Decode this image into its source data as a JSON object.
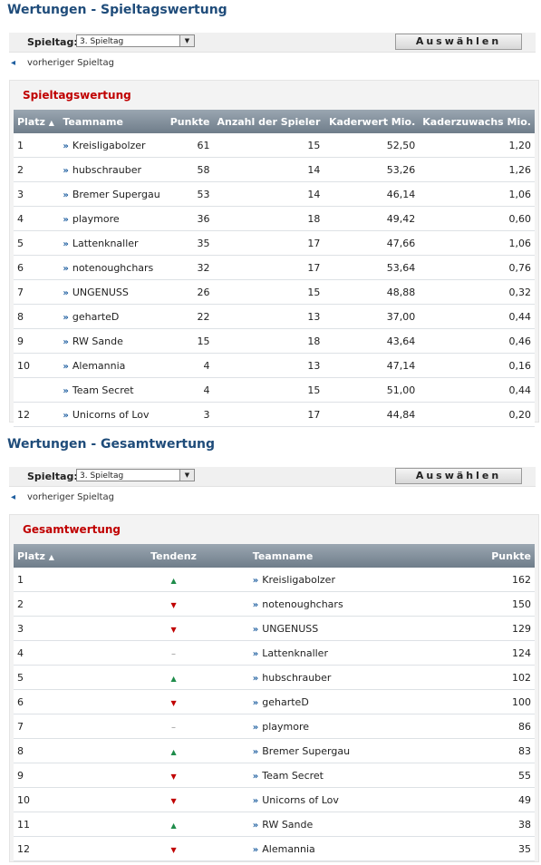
{
  "s1": {
    "title": "Wertungen - Spieltagswertung",
    "select_label": "Spieltag:",
    "select_value": "3. Spieltag",
    "button_label": "Auswählen",
    "prev_label": "vorheriger Spieltag",
    "panel_title": "Spieltagswertung",
    "headers": [
      "Platz",
      "Teamname",
      "Punkte",
      "Anzahl der Spieler",
      "Kaderwert Mio.",
      "Kaderzuwachs Mio."
    ],
    "rows": [
      {
        "platz": "1",
        "team": "Kreisligabolzer",
        "punkte": "61",
        "spieler": "15",
        "wert": "52,50",
        "zuwachs": "1,20"
      },
      {
        "platz": "2",
        "team": "hubschrauber",
        "punkte": "58",
        "spieler": "14",
        "wert": "53,26",
        "zuwachs": "1,26"
      },
      {
        "platz": "3",
        "team": "Bremer Supergau",
        "punkte": "53",
        "spieler": "14",
        "wert": "46,14",
        "zuwachs": "1,06"
      },
      {
        "platz": "4",
        "team": "playmore",
        "punkte": "36",
        "spieler": "18",
        "wert": "49,42",
        "zuwachs": "0,60"
      },
      {
        "platz": "5",
        "team": "Lattenknaller",
        "punkte": "35",
        "spieler": "17",
        "wert": "47,66",
        "zuwachs": "1,06"
      },
      {
        "platz": "6",
        "team": "notenoughchars",
        "punkte": "32",
        "spieler": "17",
        "wert": "53,64",
        "zuwachs": "0,76"
      },
      {
        "platz": "7",
        "team": "UNGENUSS",
        "punkte": "26",
        "spieler": "15",
        "wert": "48,88",
        "zuwachs": "0,32"
      },
      {
        "platz": "8",
        "team": "geharteD",
        "punkte": "22",
        "spieler": "13",
        "wert": "37,00",
        "zuwachs": "0,44"
      },
      {
        "platz": "9",
        "team": "RW Sande",
        "punkte": "15",
        "spieler": "18",
        "wert": "43,64",
        "zuwachs": "0,46"
      },
      {
        "platz": "10",
        "team": "Alemannia",
        "punkte": "4",
        "spieler": "13",
        "wert": "47,14",
        "zuwachs": "0,16"
      },
      {
        "platz": "",
        "team": "Team Secret",
        "punkte": "4",
        "spieler": "15",
        "wert": "51,00",
        "zuwachs": "0,44"
      },
      {
        "platz": "12",
        "team": "Unicorns of Lov",
        "punkte": "3",
        "spieler": "17",
        "wert": "44,84",
        "zuwachs": "0,20"
      }
    ]
  },
  "s2": {
    "title": "Wertungen - Gesamtwertung",
    "select_label": "Spieltag:",
    "select_value": "3. Spieltag",
    "button_label": "Auswählen",
    "prev_label": "vorheriger Spieltag",
    "panel_title": "Gesamtwertung",
    "headers": [
      "Platz",
      "Tendenz",
      "Teamname",
      "Punkte"
    ],
    "rows": [
      {
        "platz": "1",
        "tendenz": "up",
        "team": "Kreisligabolzer",
        "punkte": "162"
      },
      {
        "platz": "2",
        "tendenz": "down",
        "team": "notenoughchars",
        "punkte": "150"
      },
      {
        "platz": "3",
        "tendenz": "down",
        "team": "UNGENUSS",
        "punkte": "129"
      },
      {
        "platz": "4",
        "tendenz": "same",
        "team": "Lattenknaller",
        "punkte": "124"
      },
      {
        "platz": "5",
        "tendenz": "up",
        "team": "hubschrauber",
        "punkte": "102"
      },
      {
        "platz": "6",
        "tendenz": "down",
        "team": "geharteD",
        "punkte": "100"
      },
      {
        "platz": "7",
        "tendenz": "same",
        "team": "playmore",
        "punkte": "86"
      },
      {
        "platz": "8",
        "tendenz": "up",
        "team": "Bremer Supergau",
        "punkte": "83"
      },
      {
        "platz": "9",
        "tendenz": "down",
        "team": "Team Secret",
        "punkte": "55"
      },
      {
        "platz": "10",
        "tendenz": "down",
        "team": "Unicorns of Lov",
        "punkte": "49"
      },
      {
        "platz": "11",
        "tendenz": "up",
        "team": "RW Sande",
        "punkte": "38"
      },
      {
        "platz": "12",
        "tendenz": "down",
        "team": "Alemannia",
        "punkte": "35"
      }
    ]
  }
}
